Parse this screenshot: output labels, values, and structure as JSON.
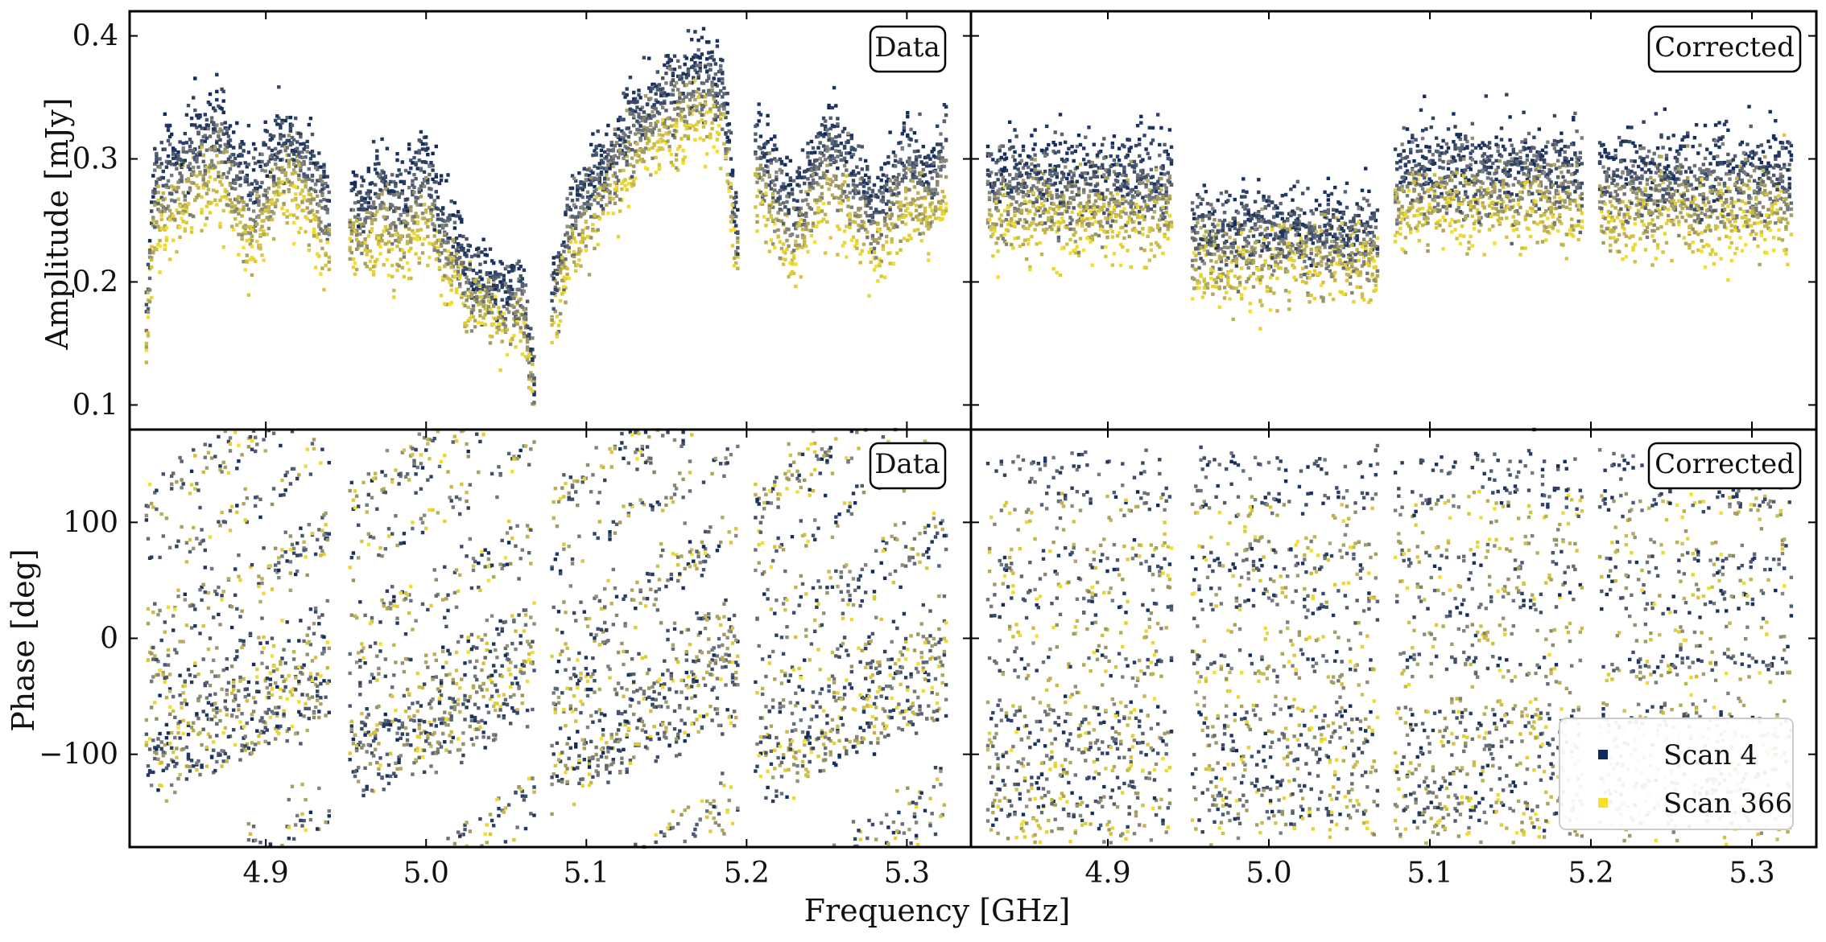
{
  "chart_data": {
    "type": "scatter",
    "xlabel": "Frequency [GHz]",
    "xlim": [
      4.815,
      5.34
    ],
    "xticks": [
      4.9,
      5.0,
      5.1,
      5.2,
      5.3
    ],
    "xtick_labels": [
      "4.9",
      "5.0",
      "5.1",
      "5.2",
      "5.3"
    ],
    "legend": {
      "position": "bottom-right of lower-right panel",
      "entries": [
        {
          "label": "Scan 4",
          "color": "#0f2a5c"
        },
        {
          "label": "Scan 366",
          "color": "#f8e02a"
        }
      ]
    },
    "colormap": {
      "name": "cividis-like",
      "from": "#0f2a5c",
      "mid": "#7a7d7f",
      "to": "#f8e02a"
    },
    "spectral_windows_ghz": [
      [
        4.825,
        4.94
      ],
      [
        4.952,
        5.068
      ],
      [
        5.078,
        5.195
      ],
      [
        5.205,
        5.325
      ]
    ],
    "panels": [
      {
        "id": "amp-data",
        "tag": "Data",
        "ylabel": "Amplitude [mJy]",
        "ylim": [
          0.08,
          0.42
        ],
        "yticks": [
          0.1,
          0.2,
          0.3,
          0.4
        ],
        "ytick_labels": [
          "0.1",
          "0.2",
          "0.3",
          "0.4"
        ],
        "profile_freq": [
          4.825,
          4.83,
          4.85,
          4.87,
          4.89,
          4.91,
          4.925,
          4.94,
          4.952,
          4.96,
          4.97,
          4.985,
          5.0,
          5.01,
          5.03,
          5.05,
          5.06,
          5.068,
          5.078,
          5.09,
          5.11,
          5.13,
          5.15,
          5.17,
          5.185,
          5.195,
          5.205,
          5.215,
          5.23,
          5.25,
          5.265,
          5.28,
          5.3,
          5.315,
          5.325
        ],
        "scan4_amp": [
          0.17,
          0.3,
          0.32,
          0.345,
          0.29,
          0.33,
          0.325,
          0.28,
          0.28,
          0.27,
          0.3,
          0.285,
          0.315,
          0.27,
          0.215,
          0.2,
          0.205,
          0.12,
          0.19,
          0.27,
          0.31,
          0.35,
          0.37,
          0.385,
          0.375,
          0.24,
          0.335,
          0.31,
          0.275,
          0.34,
          0.31,
          0.275,
          0.325,
          0.3,
          0.34
        ],
        "scan366_amp": [
          0.14,
          0.235,
          0.25,
          0.27,
          0.215,
          0.265,
          0.255,
          0.21,
          0.215,
          0.21,
          0.225,
          0.21,
          0.235,
          0.205,
          0.17,
          0.155,
          0.165,
          0.1,
          0.15,
          0.21,
          0.25,
          0.29,
          0.31,
          0.325,
          0.315,
          0.2,
          0.26,
          0.24,
          0.21,
          0.26,
          0.24,
          0.21,
          0.25,
          0.235,
          0.26
        ]
      },
      {
        "id": "amp-corrected",
        "tag": "Corrected",
        "ylim": [
          0.08,
          0.42
        ],
        "per_window_scan4_amp": [
          0.3,
          0.255,
          0.305,
          0.3
        ],
        "per_window_scan366_amp": [
          0.24,
          0.205,
          0.25,
          0.245
        ]
      },
      {
        "id": "phase-data",
        "tag": "Data",
        "ylabel": "Phase [deg]",
        "ylim": [
          -180,
          180
        ],
        "yticks": [
          -100,
          0,
          100
        ],
        "ytick_labels": [
          "−100",
          "0",
          "100"
        ],
        "phase_slope_deg_per_ghz": 700,
        "track_count_per_window": 12
      },
      {
        "id": "phase-corrected",
        "tag": "Corrected",
        "ylim": [
          -180,
          180
        ],
        "phase_slope_deg_per_ghz": 0,
        "band_phases_scan4_deg": [
          -150,
          -125,
          -95,
          -70,
          -20,
          30,
          65,
          120,
          150
        ],
        "band_phases_scan366_deg": [
          -165,
          -140,
          -110,
          -85,
          -60,
          -30,
          5,
          45,
          80,
          110
        ]
      }
    ]
  }
}
